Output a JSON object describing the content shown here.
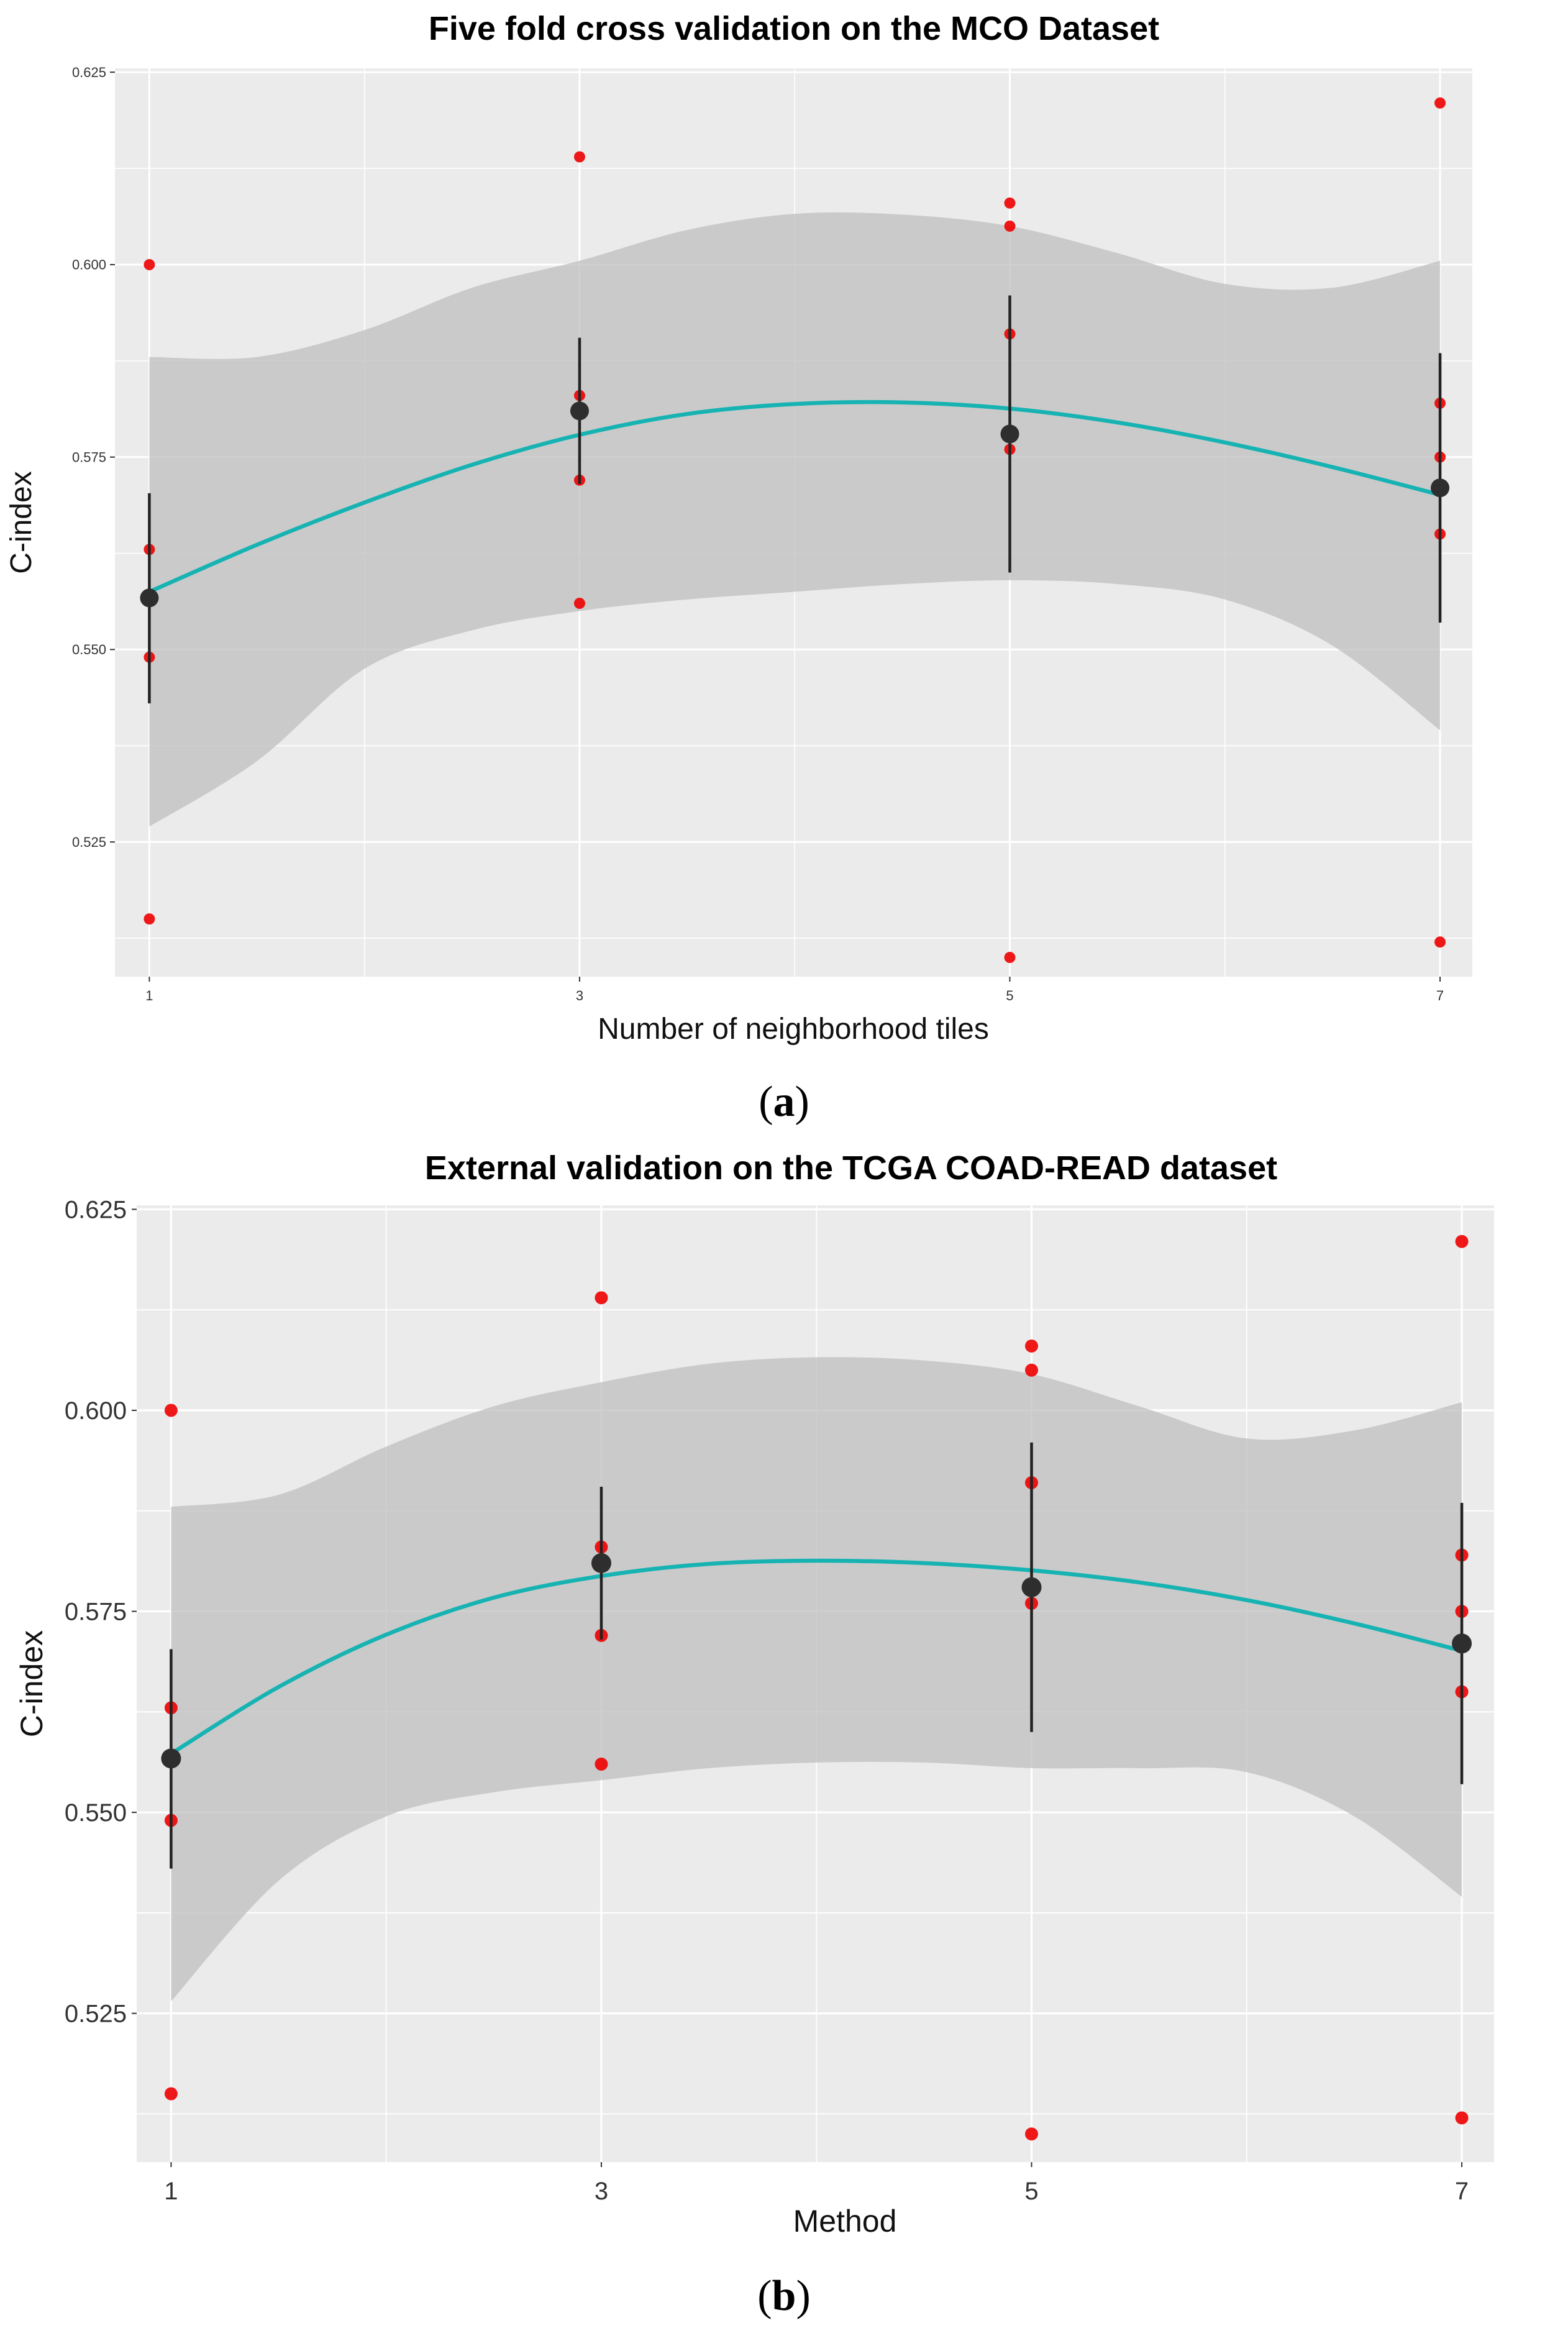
{
  "chart_data": [
    {
      "type": "scatter",
      "title": "Five fold  cross validation on the MCO Dataset",
      "xlabel": "Number of neighborhood tiles",
      "ylabel": "C-index",
      "caption_open": "(",
      "caption_letter": "a",
      "caption_close": ")",
      "xlim": [
        0.84,
        7.15
      ],
      "ylim": [
        0.5075,
        0.6255
      ],
      "xticks": [
        1,
        3,
        5,
        7
      ],
      "xtick_labels": [
        "1",
        "3",
        "5",
        "7"
      ],
      "yticks": [
        0.525,
        0.55,
        0.575,
        0.6,
        0.625
      ],
      "ytick_labels": [
        "0.525",
        "0.550",
        "0.575",
        "0.600",
        "0.625"
      ],
      "fold_points": [
        {
          "x": 1,
          "y": 0.6
        },
        {
          "x": 1,
          "y": 0.563
        },
        {
          "x": 1,
          "y": 0.549
        },
        {
          "x": 1,
          "y": 0.515
        },
        {
          "x": 3,
          "y": 0.614
        },
        {
          "x": 3,
          "y": 0.583
        },
        {
          "x": 3,
          "y": 0.572
        },
        {
          "x": 3,
          "y": 0.556
        },
        {
          "x": 5,
          "y": 0.608
        },
        {
          "x": 5,
          "y": 0.605
        },
        {
          "x": 5,
          "y": 0.591
        },
        {
          "x": 5,
          "y": 0.576
        },
        {
          "x": 5,
          "y": 0.51
        },
        {
          "x": 7,
          "y": 0.621
        },
        {
          "x": 7,
          "y": 0.582
        },
        {
          "x": 7,
          "y": 0.575
        },
        {
          "x": 7,
          "y": 0.565
        },
        {
          "x": 7,
          "y": 0.512
        }
      ],
      "means": [
        {
          "x": 1,
          "y": 0.5567,
          "low": 0.543,
          "high": 0.5703
        },
        {
          "x": 3,
          "y": 0.581,
          "low": 0.5715,
          "high": 0.5905
        },
        {
          "x": 5,
          "y": 0.578,
          "low": 0.56,
          "high": 0.596
        },
        {
          "x": 7,
          "y": 0.571,
          "low": 0.5535,
          "high": 0.5885
        }
      ],
      "smooth": {
        "x": [
          1,
          1.5,
          2,
          2.5,
          3,
          3.5,
          4,
          4.5,
          5,
          5.5,
          6,
          6.5,
          7
        ],
        "y": [
          0.5575,
          0.5636,
          0.5691,
          0.574,
          0.5779,
          0.5806,
          0.5819,
          0.5821,
          0.5813,
          0.5795,
          0.5769,
          0.5737,
          0.5701
        ],
        "ci_upper": [
          0.588,
          0.588,
          0.5915,
          0.597,
          0.6005,
          0.6045,
          0.6066,
          0.6065,
          0.605,
          0.6015,
          0.5975,
          0.597,
          0.6005
        ],
        "ci_lower": [
          0.527,
          0.5355,
          0.5475,
          0.5525,
          0.555,
          0.5565,
          0.5575,
          0.5585,
          0.559,
          0.5585,
          0.5565,
          0.5505,
          0.5395
        ]
      }
    },
    {
      "type": "scatter",
      "title": "External validation on the TCGA COAD-READ dataset",
      "xlabel": "Method",
      "ylabel": "C-index",
      "caption_open": "(",
      "caption_letter": "b",
      "caption_close": ")",
      "xlim": [
        0.84,
        7.15
      ],
      "ylim": [
        0.5065,
        0.6255
      ],
      "xticks": [
        1,
        3,
        5,
        7
      ],
      "xtick_labels": [
        "1",
        "3",
        "5",
        "7"
      ],
      "yticks": [
        0.525,
        0.55,
        0.575,
        0.6,
        0.625
      ],
      "ytick_labels": [
        "0.525",
        "0.550",
        "0.575",
        "0.600",
        "0.625"
      ],
      "fold_points": [
        {
          "x": 1,
          "y": 0.6
        },
        {
          "x": 1,
          "y": 0.563
        },
        {
          "x": 1,
          "y": 0.549
        },
        {
          "x": 1,
          "y": 0.515
        },
        {
          "x": 3,
          "y": 0.614
        },
        {
          "x": 3,
          "y": 0.583
        },
        {
          "x": 3,
          "y": 0.572
        },
        {
          "x": 3,
          "y": 0.556
        },
        {
          "x": 5,
          "y": 0.608
        },
        {
          "x": 5,
          "y": 0.605
        },
        {
          "x": 5,
          "y": 0.591
        },
        {
          "x": 5,
          "y": 0.576
        },
        {
          "x": 5,
          "y": 0.51
        },
        {
          "x": 7,
          "y": 0.621
        },
        {
          "x": 7,
          "y": 0.582
        },
        {
          "x": 7,
          "y": 0.575
        },
        {
          "x": 7,
          "y": 0.565
        },
        {
          "x": 7,
          "y": 0.512
        }
      ],
      "means": [
        {
          "x": 1,
          "y": 0.5567,
          "low": 0.543,
          "high": 0.5703
        },
        {
          "x": 3,
          "y": 0.581,
          "low": 0.5715,
          "high": 0.5905
        },
        {
          "x": 5,
          "y": 0.578,
          "low": 0.56,
          "high": 0.596
        },
        {
          "x": 7,
          "y": 0.571,
          "low": 0.5535,
          "high": 0.5885
        }
      ],
      "smooth": {
        "x": [
          1,
          1.5,
          2,
          2.5,
          3,
          3.5,
          4,
          4.5,
          5,
          5.5,
          6,
          6.5,
          7
        ],
        "y": [
          0.5573,
          0.5656,
          0.5721,
          0.5767,
          0.5794,
          0.5809,
          0.5813,
          0.581,
          0.5801,
          0.5786,
          0.5764,
          0.5735,
          0.5701
        ],
        "ci_upper": [
          0.588,
          0.5895,
          0.5955,
          0.6005,
          0.6035,
          0.6058,
          0.6066,
          0.6062,
          0.6045,
          0.6005,
          0.5965,
          0.5975,
          0.601
        ],
        "ci_lower": [
          0.5265,
          0.5415,
          0.5495,
          0.5525,
          0.554,
          0.5555,
          0.5562,
          0.5562,
          0.5555,
          0.5555,
          0.555,
          0.5495,
          0.5395
        ]
      }
    }
  ],
  "colors": {
    "panel_bg": "#ebebeb",
    "grid": "#ffffff",
    "fold_point": "#ee0000",
    "mean_point": "#2e2e2e",
    "errorbar": "#222222",
    "smooth_line": "#17b3b3",
    "ci_band": "#bdbdbd"
  }
}
